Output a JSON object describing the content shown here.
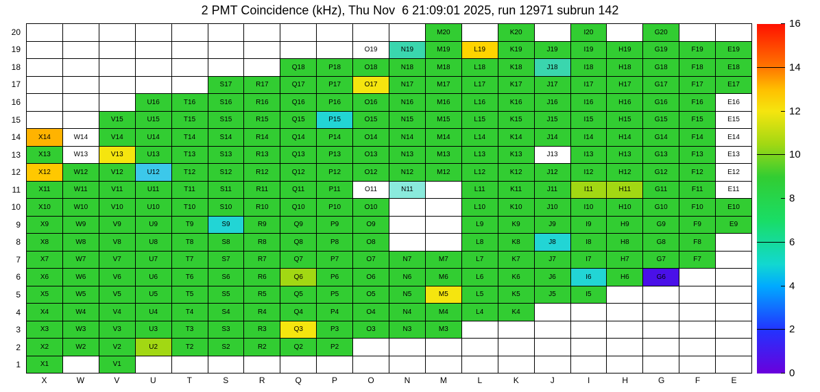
{
  "title": "2 PMT Coincidence (kHz), Thu Nov  6 21:09:01 2025, run 12971 subrun 142",
  "chart_data": {
    "type": "heatmap",
    "title": "2 PMT Coincidence (kHz), Thu Nov  6 21:09:01 2025, run 12971 subrun 142",
    "unit": "kHz",
    "run": "12971",
    "subrun": "142",
    "timestamp": "Thu Nov  6 21:09:01 2025",
    "columns": [
      "X",
      "W",
      "V",
      "U",
      "T",
      "S",
      "R",
      "Q",
      "P",
      "O",
      "N",
      "M",
      "L",
      "K",
      "J",
      "I",
      "H",
      "G",
      "F",
      "E"
    ],
    "cell_label_format": "{column}{row}",
    "colorbar": {
      "min": 0,
      "max": 16,
      "ticks": [
        0,
        2,
        4,
        6,
        8,
        10,
        12,
        14,
        16
      ],
      "line_marks": [
        2,
        6,
        10,
        14
      ],
      "gradient_stops": [
        {
          "value": 0,
          "color": "#6a00dc"
        },
        {
          "value": 2,
          "color": "#2233ff"
        },
        {
          "value": 4,
          "color": "#00aaff"
        },
        {
          "value": 5,
          "color": "#12d8d0"
        },
        {
          "value": 7,
          "color": "#19dd66"
        },
        {
          "value": 9,
          "color": "#32cd32"
        },
        {
          "value": 10.5,
          "color": "#a2d813"
        },
        {
          "value": 12,
          "color": "#f5e50f"
        },
        {
          "value": 13,
          "color": "#ffbf00"
        },
        {
          "value": 14,
          "color": "#ff7700"
        },
        {
          "value": 16,
          "color": "#ff1100"
        }
      ]
    },
    "palette": {
      "g": {
        "color": "#32cd32",
        "value": 9
      },
      "yg": {
        "color": "#a2d813",
        "value": 10.5
      },
      "y": {
        "color": "#f5e50f",
        "value": 12
      },
      "gd": {
        "color": "#ffd400",
        "value": 12.5
      },
      "o": {
        "color": "#ffb300",
        "value": 13.5
      },
      "o2": {
        "color": "#ffc800",
        "value": 13
      },
      "c": {
        "color": "#22d5d5",
        "value": 5
      },
      "t": {
        "color": "#3ad6ae",
        "value": 6.5
      },
      "lc": {
        "color": "#8aeadc",
        "value": 5.5
      },
      "b": {
        "color": "#3cc8ea",
        "value": 4.5
      },
      "v": {
        "color": "#4a10e8",
        "value": 1
      },
      "w": {
        "color": "#ffffff",
        "value": 0
      }
    },
    "rows": [
      {
        "row": 20,
        "cells": [
          "",
          "",
          "",
          "",
          "",
          "",
          "",
          "",
          "",
          "",
          "",
          "g",
          "",
          "g",
          "",
          "g",
          "",
          "g",
          "",
          ""
        ]
      },
      {
        "row": 19,
        "cells": [
          "",
          "",
          "",
          "",
          "",
          "",
          "",
          "",
          "",
          "w",
          "t",
          "g",
          "gd",
          "g",
          "g",
          "g",
          "g",
          "g",
          "g",
          "g"
        ]
      },
      {
        "row": 18,
        "cells": [
          "",
          "",
          "",
          "",
          "",
          "",
          "",
          "g",
          "g",
          "g",
          "g",
          "g",
          "g",
          "g",
          "t",
          "g",
          "g",
          "g",
          "g",
          "g"
        ]
      },
      {
        "row": 17,
        "cells": [
          "",
          "",
          "",
          "",
          "",
          "g",
          "g",
          "g",
          "g",
          "y",
          "g",
          "g",
          "g",
          "g",
          "g",
          "g",
          "g",
          "g",
          "g",
          "g"
        ]
      },
      {
        "row": 16,
        "cells": [
          "",
          "",
          "",
          "g",
          "g",
          "g",
          "g",
          "g",
          "g",
          "g",
          "g",
          "g",
          "g",
          "g",
          "g",
          "g",
          "g",
          "g",
          "g",
          "w"
        ]
      },
      {
        "row": 15,
        "cells": [
          "",
          "",
          "g",
          "g",
          "g",
          "g",
          "g",
          "g",
          "c",
          "g",
          "g",
          "g",
          "g",
          "g",
          "g",
          "g",
          "g",
          "g",
          "g",
          "w"
        ]
      },
      {
        "row": 14,
        "cells": [
          "o",
          "w",
          "g",
          "g",
          "g",
          "g",
          "g",
          "g",
          "g",
          "g",
          "g",
          "g",
          "g",
          "g",
          "g",
          "g",
          "g",
          "g",
          "g",
          "w"
        ]
      },
      {
        "row": 13,
        "cells": [
          "g",
          "w",
          "y",
          "g",
          "g",
          "g",
          "g",
          "g",
          "g",
          "g",
          "g",
          "g",
          "g",
          "g",
          "w",
          "g",
          "g",
          "g",
          "g",
          "w"
        ]
      },
      {
        "row": 12,
        "cells": [
          "o2",
          "g",
          "g",
          "b",
          "g",
          "g",
          "g",
          "g",
          "g",
          "g",
          "g",
          "g",
          "g",
          "g",
          "g",
          "g",
          "g",
          "g",
          "g",
          "w"
        ]
      },
      {
        "row": 11,
        "cells": [
          "g",
          "g",
          "g",
          "g",
          "g",
          "g",
          "g",
          "g",
          "g",
          "w",
          "lc",
          "",
          "g",
          "g",
          "g",
          "yg",
          "yg",
          "g",
          "g",
          "w"
        ]
      },
      {
        "row": 10,
        "cells": [
          "g",
          "g",
          "g",
          "g",
          "g",
          "g",
          "g",
          "g",
          "g",
          "g",
          "",
          "",
          "g",
          "g",
          "g",
          "g",
          "g",
          "g",
          "g",
          "g"
        ]
      },
      {
        "row": 9,
        "cells": [
          "g",
          "g",
          "g",
          "g",
          "g",
          "c",
          "g",
          "g",
          "g",
          "g",
          "",
          "",
          "g",
          "g",
          "g",
          "g",
          "g",
          "g",
          "g",
          "g"
        ]
      },
      {
        "row": 8,
        "cells": [
          "g",
          "g",
          "g",
          "g",
          "g",
          "g",
          "g",
          "g",
          "g",
          "g",
          "",
          "",
          "g",
          "g",
          "c",
          "g",
          "g",
          "g",
          "g",
          ""
        ]
      },
      {
        "row": 7,
        "cells": [
          "g",
          "g",
          "g",
          "g",
          "g",
          "g",
          "g",
          "g",
          "g",
          "g",
          "g",
          "g",
          "g",
          "g",
          "g",
          "g",
          "g",
          "g",
          "g",
          ""
        ]
      },
      {
        "row": 6,
        "cells": [
          "g",
          "g",
          "g",
          "g",
          "g",
          "g",
          "g",
          "yg",
          "g",
          "g",
          "g",
          "g",
          "g",
          "g",
          "g",
          "c",
          "g",
          "v",
          "",
          ""
        ]
      },
      {
        "row": 5,
        "cells": [
          "g",
          "g",
          "g",
          "g",
          "g",
          "g",
          "g",
          "g",
          "g",
          "g",
          "g",
          "y",
          "g",
          "g",
          "g",
          "g",
          "",
          "",
          "",
          ""
        ]
      },
      {
        "row": 4,
        "cells": [
          "g",
          "g",
          "g",
          "g",
          "g",
          "g",
          "g",
          "g",
          "g",
          "g",
          "g",
          "g",
          "g",
          "g",
          "",
          "",
          "",
          "",
          "",
          ""
        ]
      },
      {
        "row": 3,
        "cells": [
          "g",
          "g",
          "g",
          "g",
          "g",
          "g",
          "g",
          "y",
          "g",
          "g",
          "g",
          "g",
          "",
          "",
          "",
          "",
          "",
          "",
          "",
          ""
        ]
      },
      {
        "row": 2,
        "cells": [
          "g",
          "g",
          "g",
          "yg",
          "g",
          "g",
          "g",
          "g",
          "g",
          "",
          "",
          "",
          "",
          "",
          "",
          "",
          "",
          "",
          "",
          ""
        ]
      },
      {
        "row": 1,
        "cells": [
          "g",
          "",
          "g",
          "",
          "",
          "",
          "",
          "",
          "",
          "",
          "",
          "",
          "",
          "",
          "",
          "",
          "",
          "",
          "",
          ""
        ]
      }
    ]
  }
}
